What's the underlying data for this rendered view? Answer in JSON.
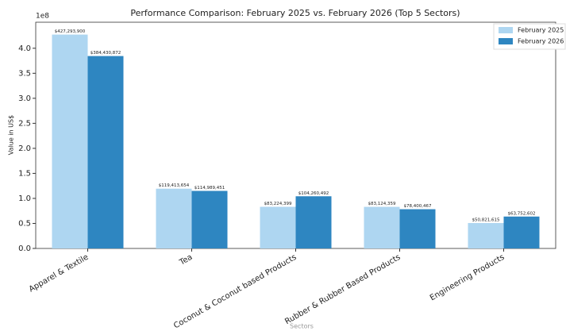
{
  "chart_data": {
    "type": "grouped_bar",
    "title": "Performance Comparison: February 2025 vs. February 2026 (Top 5 Sectors)",
    "x_label": "Sectors",
    "y_label": "Value in US$",
    "y_offset_label": "1e8",
    "categories": [
      "Apparel & Textile",
      "Tea",
      "Coconut & Coconut based Products",
      "Rubber & Rubber Based Products",
      "Engineering Products"
    ],
    "series": [
      {
        "name": "February 2025",
        "color": "#aed6f1",
        "values": [
          427293900,
          119413654,
          83224399,
          83124359,
          50821615
        ],
        "value_labels": [
          "$427,293,900",
          "$119,413,654",
          "$83,224,399",
          "$83,124,359",
          "$50,821,615"
        ]
      },
      {
        "name": "February 2026",
        "color": "#2e86c1",
        "values": [
          384430872,
          114989451,
          104260492,
          78400467,
          63752602
        ],
        "value_labels": [
          "$384,430,872",
          "$114,989,451",
          "$104,260,492",
          "$78,400,467",
          "$63,752,602"
        ]
      }
    ],
    "ylim": [
      0,
      452000000
    ],
    "yticks": [
      {
        "value": 0,
        "label": "0.0"
      },
      {
        "value": 50000000,
        "label": "0.5"
      },
      {
        "value": 100000000,
        "label": "1.0"
      },
      {
        "value": 150000000,
        "label": "1.5"
      },
      {
        "value": 200000000,
        "label": "2.0"
      },
      {
        "value": 250000000,
        "label": "2.5"
      },
      {
        "value": 300000000,
        "label": "3.0"
      },
      {
        "value": 350000000,
        "label": "3.5"
      },
      {
        "value": 400000000,
        "label": "4.0"
      }
    ],
    "legend": "upper right",
    "grid": false
  }
}
